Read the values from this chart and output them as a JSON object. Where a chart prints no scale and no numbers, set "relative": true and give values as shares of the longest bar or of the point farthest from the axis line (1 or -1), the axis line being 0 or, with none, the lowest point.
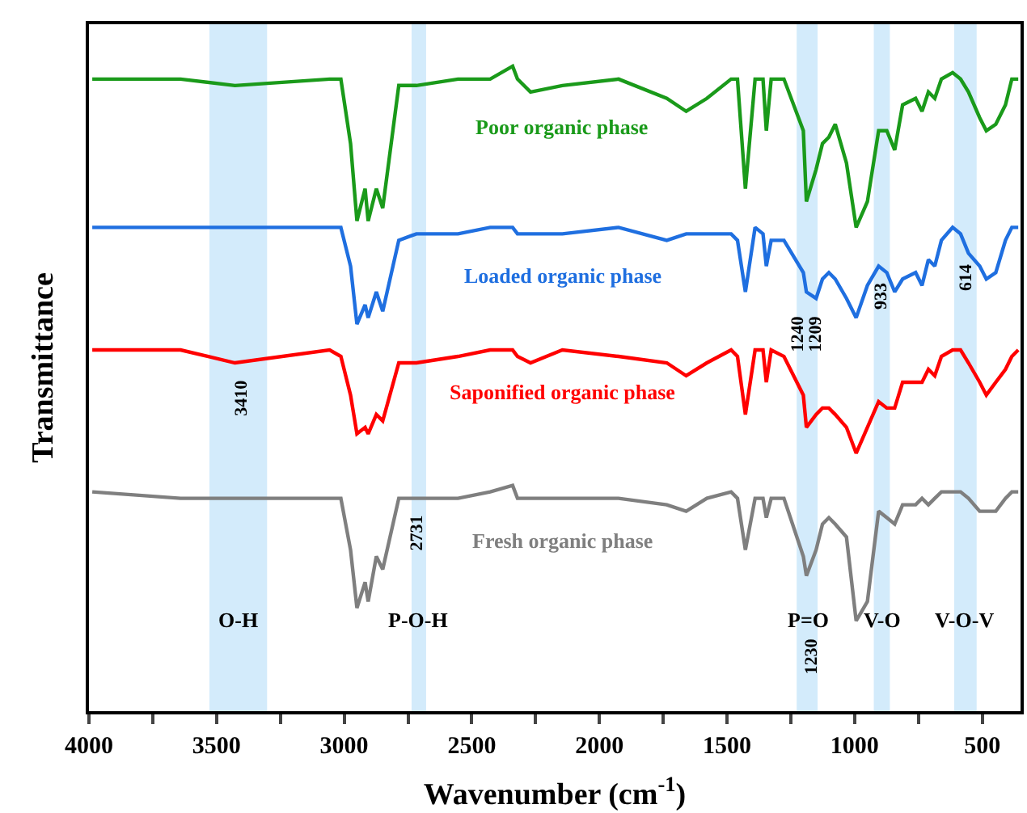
{
  "chart_data": {
    "type": "line",
    "relative": true,
    "xlabel": "Wavenumber (cm$^{-1}$)",
    "ylabel": "Transmittance",
    "x": [
      3987,
      3641,
      3428,
      3057,
      3013,
      2975,
      2950,
      2918,
      2906,
      2874,
      2849,
      2786,
      2717,
      2554,
      2428,
      2340,
      2321,
      2270,
      2145,
      1925,
      1736,
      1660,
      1579,
      1484,
      1459,
      1428,
      1390,
      1359,
      1346,
      1327,
      1277,
      1201,
      1189,
      1151,
      1126,
      1101,
      1076,
      1032,
      994,
      950,
      906,
      874,
      843,
      812,
      761,
      736,
      711,
      686,
      660,
      616,
      585,
      554,
      510,
      484,
      447,
      409,
      384,
      359
    ],
    "xlim": [
      4000,
      350
    ],
    "xticks": [
      4000,
      {
        "value": 3750,
        "label": null
      },
      3500,
      {
        "value": 3250,
        "label": null
      },
      3000,
      {
        "value": 2750,
        "label": null
      },
      2500,
      {
        "value": 2250,
        "label": null
      },
      2000,
      {
        "value": 1750,
        "label": null
      },
      1500,
      {
        "value": 1250,
        "label": null
      },
      1000,
      {
        "value": 750,
        "label": null
      },
      500
    ],
    "series": [
      {
        "name": "Poor organic phase",
        "color": "#1a9a1a",
        "values": [
          0.98,
          0.98,
          0.97,
          0.98,
          0.98,
          0.88,
          0.76,
          0.81,
          0.76,
          0.81,
          0.78,
          0.97,
          0.97,
          0.98,
          0.98,
          1.0,
          0.98,
          0.96,
          0.97,
          0.98,
          0.95,
          0.93,
          0.95,
          0.98,
          0.98,
          0.81,
          0.98,
          0.98,
          0.9,
          0.98,
          0.98,
          0.9,
          0.79,
          0.84,
          0.88,
          0.89,
          0.91,
          0.85,
          0.75,
          0.79,
          0.9,
          0.9,
          0.87,
          0.94,
          0.95,
          0.93,
          0.96,
          0.95,
          0.98,
          0.99,
          0.98,
          0.96,
          0.92,
          0.9,
          0.91,
          0.94,
          0.98,
          0.98
        ]
      },
      {
        "name": "Loaded organic phase",
        "color": "#1f6fe0",
        "values": [
          0.75,
          0.75,
          0.75,
          0.75,
          0.75,
          0.69,
          0.6,
          0.63,
          0.61,
          0.65,
          0.62,
          0.73,
          0.74,
          0.74,
          0.75,
          0.75,
          0.74,
          0.74,
          0.74,
          0.75,
          0.73,
          0.74,
          0.74,
          0.74,
          0.73,
          0.65,
          0.75,
          0.74,
          0.69,
          0.73,
          0.73,
          0.68,
          0.65,
          0.64,
          0.67,
          0.68,
          0.67,
          0.64,
          0.61,
          0.66,
          0.69,
          0.68,
          0.65,
          0.67,
          0.68,
          0.66,
          0.7,
          0.69,
          0.73,
          0.75,
          0.74,
          0.71,
          0.69,
          0.67,
          0.68,
          0.73,
          0.75,
          0.75
        ]
      },
      {
        "name": "Saponified organic phase",
        "color": "#ff0000",
        "values": [
          0.56,
          0.56,
          0.54,
          0.56,
          0.55,
          0.49,
          0.43,
          0.44,
          0.43,
          0.46,
          0.45,
          0.54,
          0.54,
          0.55,
          0.56,
          0.56,
          0.55,
          0.54,
          0.56,
          0.55,
          0.54,
          0.52,
          0.54,
          0.56,
          0.55,
          0.46,
          0.56,
          0.56,
          0.51,
          0.56,
          0.55,
          0.49,
          0.44,
          0.46,
          0.47,
          0.47,
          0.46,
          0.44,
          0.4,
          0.44,
          0.48,
          0.47,
          0.47,
          0.51,
          0.51,
          0.51,
          0.53,
          0.52,
          0.55,
          0.56,
          0.56,
          0.54,
          0.51,
          0.49,
          0.51,
          0.53,
          0.55,
          0.56
        ]
      },
      {
        "name": "Fresh organic phase",
        "color": "#7f7f7f",
        "values": [
          0.34,
          0.33,
          0.33,
          0.33,
          0.33,
          0.25,
          0.16,
          0.2,
          0.17,
          0.24,
          0.22,
          0.33,
          0.33,
          0.33,
          0.34,
          0.35,
          0.33,
          0.33,
          0.33,
          0.33,
          0.32,
          0.31,
          0.33,
          0.34,
          0.33,
          0.25,
          0.33,
          0.33,
          0.3,
          0.33,
          0.33,
          0.24,
          0.21,
          0.25,
          0.29,
          0.3,
          0.29,
          0.27,
          0.14,
          0.17,
          0.31,
          0.3,
          0.29,
          0.32,
          0.32,
          0.33,
          0.32,
          0.33,
          0.34,
          0.34,
          0.34,
          0.33,
          0.31,
          0.31,
          0.31,
          0.33,
          0.34,
          0.34
        ]
      }
    ],
    "bands": [
      {
        "axis": "x",
        "from": 3528,
        "to": 3302,
        "label": "O-H",
        "color": "#d3ebfb"
      },
      {
        "axis": "x",
        "from": 2736,
        "to": 2679,
        "label": "P-O-H",
        "color": "#d3ebfb"
      },
      {
        "axis": "x",
        "from": 1227,
        "to": 1145,
        "label": "P=O",
        "color": "#d3ebfb"
      },
      {
        "axis": "x",
        "from": 925,
        "to": 862,
        "label": "V-O",
        "color": "#d3ebfb"
      },
      {
        "axis": "x",
        "from": 610,
        "to": 522,
        "label": "V-O-V",
        "color": "#d3ebfb"
      }
    ],
    "annotations": [
      {
        "text": "3410",
        "x": 3402,
        "y": 0.53
      },
      {
        "text": "2731",
        "x": 2711,
        "y": 0.32
      },
      {
        "text": "1240",
        "x": 1220,
        "y": 0.63
      },
      {
        "text": "1209",
        "x": 1151,
        "y": 0.63
      },
      {
        "text": "933",
        "x": 893,
        "y": 0.68
      },
      {
        "text": "614",
        "x": 560,
        "y": 0.71
      },
      {
        "text": "1230",
        "x": 1170,
        "y": 0.13
      }
    ],
    "legend": false,
    "grid": false,
    "line_style": "solid"
  }
}
